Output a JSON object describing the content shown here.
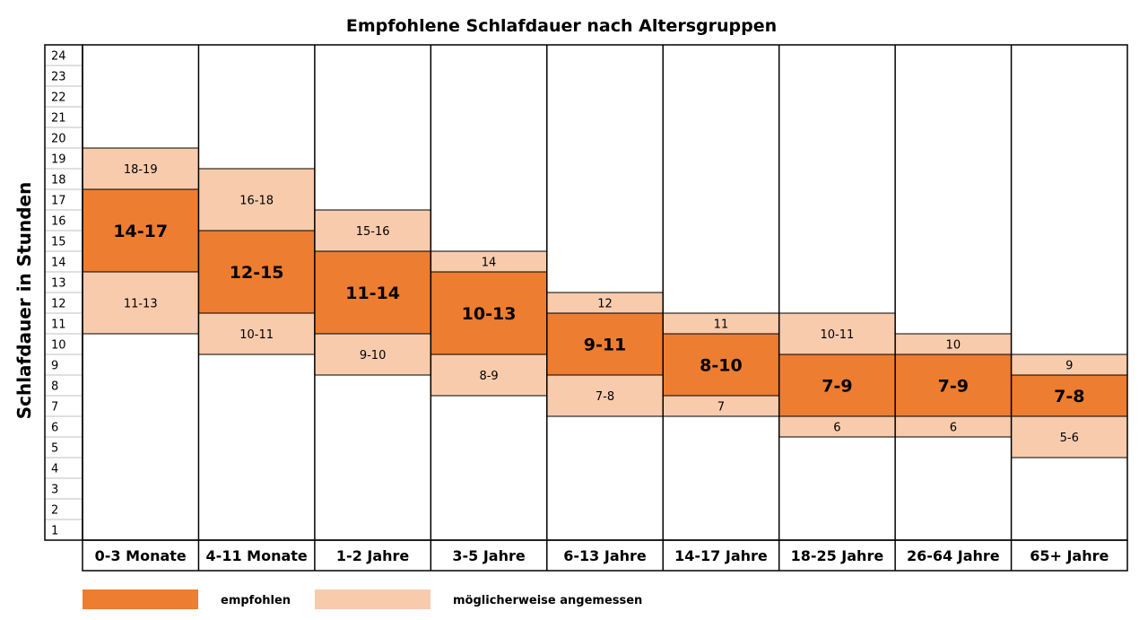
{
  "chart_data": {
    "type": "bar",
    "title": "Empfohlene Schlafdauer nach Altersgruppen",
    "ylabel": "Schlafdauer in Stunden",
    "xlabel": "",
    "ylim": [
      1,
      24
    ],
    "yticks": [
      24,
      23,
      22,
      21,
      20,
      19,
      18,
      17,
      16,
      15,
      14,
      13,
      12,
      11,
      10,
      9,
      8,
      7,
      6,
      5,
      4,
      3,
      2,
      1
    ],
    "categories": [
      "0-3 Monate",
      "4-11 Monate",
      "1-2 Jahre",
      "3-5 Jahre",
      "6-13 Jahre",
      "14-17 Jahre",
      "18-25 Jahre",
      "26-64 Jahre",
      "65+ Jahre"
    ],
    "recommended": [
      {
        "label": "14-17",
        "from": 14,
        "to": 17
      },
      {
        "label": "12-15",
        "from": 12,
        "to": 15
      },
      {
        "label": "11-14",
        "from": 11,
        "to": 14
      },
      {
        "label": "10-13",
        "from": 10,
        "to": 13
      },
      {
        "label": "9-11",
        "from": 9,
        "to": 11
      },
      {
        "label": "8-10",
        "from": 8,
        "to": 10
      },
      {
        "label": "7-9",
        "from": 7,
        "to": 9
      },
      {
        "label": "7-9",
        "from": 7,
        "to": 9
      },
      {
        "label": "7-8",
        "from": 7,
        "to": 8
      }
    ],
    "possibly_upper": [
      {
        "label": "18-19",
        "from": 18,
        "to": 19
      },
      {
        "label": "16-18",
        "from": 16,
        "to": 18
      },
      {
        "label": "15-16",
        "from": 15,
        "to": 16
      },
      {
        "label": "14",
        "from": 14,
        "to": 14
      },
      {
        "label": "12",
        "from": 12,
        "to": 12
      },
      {
        "label": "11",
        "from": 11,
        "to": 11
      },
      {
        "label": "10-11",
        "from": 10,
        "to": 11
      },
      {
        "label": "10",
        "from": 10,
        "to": 10
      },
      {
        "label": "9",
        "from": 9,
        "to": 9
      }
    ],
    "possibly_lower": [
      {
        "label": "11-13",
        "from": 11,
        "to": 13
      },
      {
        "label": "10-11",
        "from": 10,
        "to": 11
      },
      {
        "label": "9-10",
        "from": 9,
        "to": 10
      },
      {
        "label": "8-9",
        "from": 8,
        "to": 9
      },
      {
        "label": "7-8",
        "from": 7,
        "to": 8
      },
      {
        "label": "7",
        "from": 7,
        "to": 7
      },
      {
        "label": "6",
        "from": 6,
        "to": 6
      },
      {
        "label": "6",
        "from": 6,
        "to": 6
      },
      {
        "label": "5-6",
        "from": 5,
        "to": 6
      }
    ],
    "legend": [
      {
        "label": "empfohlen",
        "color": "#ed7d31"
      },
      {
        "label": "möglicherweise angemessen",
        "color": "#f8cbad"
      }
    ],
    "legend_position": "bottom",
    "colors": {
      "recommended": "#ed7d31",
      "possibly": "#f8cbad",
      "border": "#000000"
    }
  }
}
